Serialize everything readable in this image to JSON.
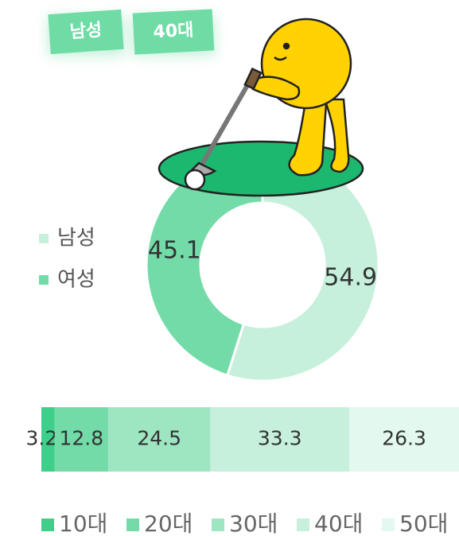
{
  "badges": [
    "남성",
    "40대"
  ],
  "chart_data": [
    {
      "type": "donut",
      "categories": [
        "남성",
        "여성"
      ],
      "values": [
        54.9,
        45.1
      ],
      "colors": [
        "#c6f0dc",
        "#72dba8"
      ]
    },
    {
      "type": "stacked_bar",
      "series": [
        {
          "name": "10대",
          "color": "#3ecf8a",
          "values": [
            3.2
          ]
        },
        {
          "name": "20대",
          "color": "#72dba8",
          "values": [
            12.8
          ]
        },
        {
          "name": "30대",
          "color": "#9ee6c2",
          "values": [
            24.5
          ]
        },
        {
          "name": "40대",
          "color": "#c6f0dc",
          "values": [
            33.3
          ]
        },
        {
          "name": "50대",
          "color": "#e3f8ee",
          "values": [
            26.3
          ]
        }
      ]
    }
  ]
}
